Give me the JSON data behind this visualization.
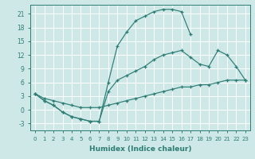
{
  "bg_color": "#cde8e6",
  "line_color": "#2d7d74",
  "line1_x": [
    0,
    1,
    2,
    3,
    4,
    5,
    6,
    7,
    8,
    9,
    10,
    11,
    12,
    13,
    14,
    15,
    16,
    17
  ],
  "line1_y": [
    3.5,
    2.0,
    1.0,
    -0.5,
    -1.5,
    -2.0,
    -2.5,
    -2.5,
    6.0,
    14.0,
    17.0,
    19.5,
    20.5,
    21.5,
    22.0,
    22.0,
    21.5,
    16.5
  ],
  "line2_x": [
    0,
    1,
    2,
    3,
    4,
    5,
    6,
    7,
    8,
    9,
    10,
    11,
    12,
    13,
    14,
    15,
    16,
    17,
    18,
    19,
    20,
    21,
    22,
    23
  ],
  "line2_y": [
    3.5,
    2.0,
    1.0,
    -0.5,
    -1.5,
    -2.0,
    -2.5,
    -2.5,
    4.0,
    6.5,
    7.5,
    8.5,
    9.5,
    11.0,
    12.0,
    12.5,
    13.0,
    11.5,
    10.0,
    9.5,
    13.0,
    12.0,
    9.5,
    6.5
  ],
  "line3_x": [
    0,
    1,
    2,
    3,
    4,
    5,
    6,
    7,
    8,
    9,
    10,
    11,
    12,
    13,
    14,
    15,
    16,
    17,
    18,
    19,
    20,
    21,
    22,
    23
  ],
  "line3_y": [
    3.5,
    2.5,
    2.0,
    1.5,
    1.0,
    0.5,
    0.5,
    0.5,
    1.0,
    1.5,
    2.0,
    2.5,
    3.0,
    3.5,
    4.0,
    4.5,
    5.0,
    5.0,
    5.5,
    5.5,
    6.0,
    6.5,
    6.5,
    6.5
  ],
  "xlabel": "Humidex (Indice chaleur)",
  "xlim": [
    -0.5,
    23.5
  ],
  "ylim": [
    -4.5,
    23.0
  ],
  "yticks": [
    -3,
    0,
    3,
    6,
    9,
    12,
    15,
    18,
    21
  ],
  "xticks": [
    0,
    1,
    2,
    3,
    4,
    5,
    6,
    7,
    8,
    9,
    10,
    11,
    12,
    13,
    14,
    15,
    16,
    17,
    18,
    19,
    20,
    21,
    22,
    23
  ]
}
